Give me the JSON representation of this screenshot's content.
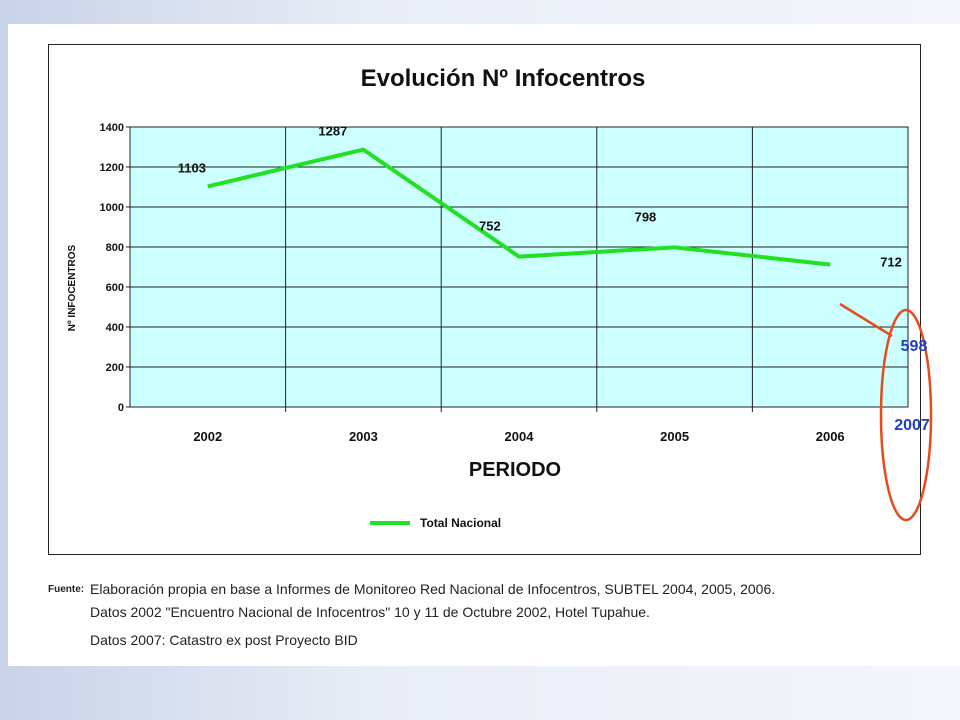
{
  "chart_data": {
    "type": "line",
    "title": "Evolución Nº Infocentros",
    "xlabel": "PERIODO",
    "ylabel": "Nº INFOCENTROS",
    "categories": [
      "2002",
      "2003",
      "2004",
      "2005",
      "2006"
    ],
    "series": [
      {
        "name": "Total Nacional",
        "values": [
          1103,
          1287,
          752,
          798,
          712
        ],
        "color": "#22e022"
      }
    ],
    "data_labels": [
      "1103",
      "1287",
      "752",
      "798",
      "712"
    ],
    "yticks": [
      "0",
      "200",
      "400",
      "600",
      "800",
      "1000",
      "1200",
      "1400"
    ],
    "ylim": [
      0,
      1400
    ],
    "grid": true,
    "plot_background": "#ccffff",
    "legend": "bottom-center",
    "annotation": {
      "value": 598,
      "value_label": "598",
      "year_label": "2007",
      "color": "#1f3fbf",
      "marker_color": "#e84a1a"
    }
  },
  "footer": {
    "label": "Fuente:",
    "line1": "Elaboración propia en base a Informes de Monitoreo Red Nacional de Infocentros, SUBTEL 2004, 2005, 2006.",
    "line2": "Datos 2002 \"Encuentro Nacional de Infocentros\" 10 y 11 de Octubre 2002, Hotel Tupahue.",
    "line3": "Datos 2007: Catastro ex post Proyecto BID"
  }
}
